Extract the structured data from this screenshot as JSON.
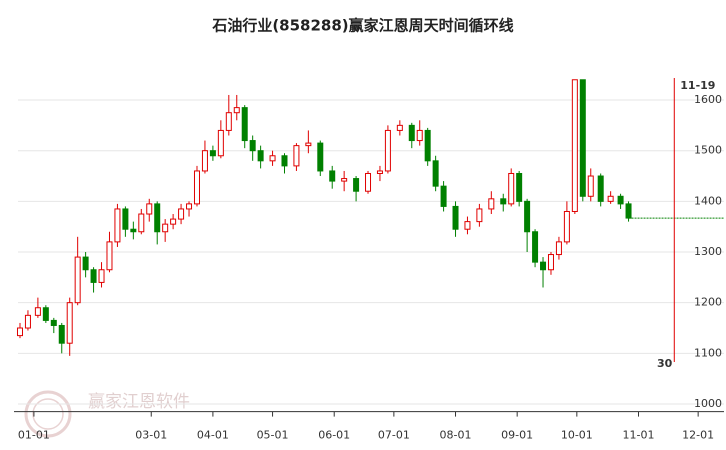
{
  "chart_data": {
    "type": "candlestick",
    "title": "石油行业(858288)赢家江恩周天时间循环线",
    "watermark": "赢家江恩软件",
    "x": [
      -7,
      -3,
      2,
      6,
      10,
      14,
      18,
      22,
      26,
      30,
      34,
      38,
      42,
      46,
      50,
      54,
      58,
      62,
      66,
      70,
      74,
      78,
      82,
      86,
      90,
      94,
      98,
      102,
      106,
      110,
      114,
      120,
      126,
      132,
      138,
      144,
      150,
      156,
      162,
      168,
      174,
      178,
      184,
      190,
      194,
      198,
      202,
      206,
      212,
      218,
      224,
      230,
      236,
      240,
      244,
      248,
      252,
      256,
      260,
      264,
      268,
      272,
      276,
      280,
      285,
      290,
      295,
      299
    ],
    "open": [
      1135,
      1150,
      1175,
      1190,
      1165,
      1155,
      1120,
      1200,
      1290,
      1265,
      1240,
      1265,
      1320,
      1385,
      1345,
      1340,
      1375,
      1395,
      1340,
      1355,
      1365,
      1385,
      1395,
      1460,
      1500,
      1490,
      1540,
      1575,
      1585,
      1520,
      1500,
      1480,
      1490,
      1470,
      1510,
      1515,
      1460,
      1440,
      1445,
      1420,
      1455,
      1460,
      1540,
      1550,
      1520,
      1540,
      1480,
      1430,
      1390,
      1345,
      1360,
      1385,
      1405,
      1395,
      1455,
      1400,
      1340,
      1280,
      1265,
      1295,
      1320,
      1380,
      1640,
      1410,
      1450,
      1400,
      1410,
      1395
    ],
    "close": [
      1150,
      1175,
      1190,
      1165,
      1155,
      1120,
      1200,
      1290,
      1265,
      1240,
      1265,
      1320,
      1385,
      1345,
      1340,
      1375,
      1395,
      1340,
      1355,
      1365,
      1385,
      1395,
      1460,
      1500,
      1490,
      1540,
      1575,
      1585,
      1520,
      1500,
      1480,
      1490,
      1470,
      1510,
      1515,
      1460,
      1440,
      1445,
      1420,
      1455,
      1460,
      1540,
      1550,
      1520,
      1540,
      1480,
      1430,
      1390,
      1345,
      1360,
      1385,
      1405,
      1395,
      1455,
      1400,
      1340,
      1280,
      1265,
      1295,
      1320,
      1380,
      1640,
      1410,
      1450,
      1400,
      1410,
      1395,
      1367
    ],
    "high": [
      1160,
      1185,
      1210,
      1195,
      1170,
      1160,
      1210,
      1330,
      1300,
      1270,
      1280,
      1340,
      1395,
      1390,
      1360,
      1385,
      1405,
      1400,
      1365,
      1375,
      1395,
      1400,
      1470,
      1520,
      1510,
      1560,
      1610,
      1610,
      1590,
      1530,
      1510,
      1500,
      1495,
      1515,
      1540,
      1520,
      1470,
      1460,
      1450,
      1460,
      1470,
      1550,
      1560,
      1555,
      1560,
      1545,
      1490,
      1440,
      1400,
      1370,
      1395,
      1420,
      1415,
      1465,
      1460,
      1405,
      1345,
      1290,
      1300,
      1330,
      1400,
      1640,
      1640,
      1465,
      1455,
      1420,
      1415,
      1400
    ],
    "low": [
      1130,
      1145,
      1170,
      1160,
      1140,
      1100,
      1095,
      1195,
      1250,
      1220,
      1230,
      1260,
      1310,
      1330,
      1325,
      1335,
      1360,
      1315,
      1320,
      1345,
      1355,
      1370,
      1390,
      1455,
      1480,
      1485,
      1530,
      1560,
      1505,
      1480,
      1465,
      1470,
      1455,
      1460,
      1495,
      1450,
      1425,
      1420,
      1400,
      1415,
      1440,
      1455,
      1530,
      1505,
      1510,
      1470,
      1420,
      1380,
      1330,
      1335,
      1350,
      1375,
      1380,
      1390,
      1390,
      1300,
      1270,
      1230,
      1255,
      1285,
      1315,
      1375,
      1400,
      1400,
      1390,
      1395,
      1385,
      1360
    ],
    "up_color": "#e00000",
    "down_color": "#008000",
    "xlim": [
      -8,
      347
    ],
    "xticks": [
      {
        "value": 0,
        "label": "01-01"
      },
      {
        "value": 59,
        "label": "03-01"
      },
      {
        "value": 90,
        "label": "04-01"
      },
      {
        "value": 120,
        "label": "05-01"
      },
      {
        "value": 151,
        "label": "06-01"
      },
      {
        "value": 181,
        "label": "07-01"
      },
      {
        "value": 212,
        "label": "08-01"
      },
      {
        "value": 243,
        "label": "09-01"
      },
      {
        "value": 273,
        "label": "10-01"
      },
      {
        "value": 304,
        "label": "11-01"
      },
      {
        "value": 334,
        "label": "12-01"
      }
    ],
    "ylim": [
      985,
      1680
    ],
    "yticks": [
      1000,
      1100,
      1200,
      1300,
      1400,
      1500,
      1600
    ],
    "grid": true,
    "projection": {
      "value": 1367,
      "x_start": 299,
      "color": "#008000"
    },
    "cycle_line": {
      "x": 322,
      "top_label": "11-19",
      "bottom_label": "30",
      "color": "#e00000"
    }
  }
}
